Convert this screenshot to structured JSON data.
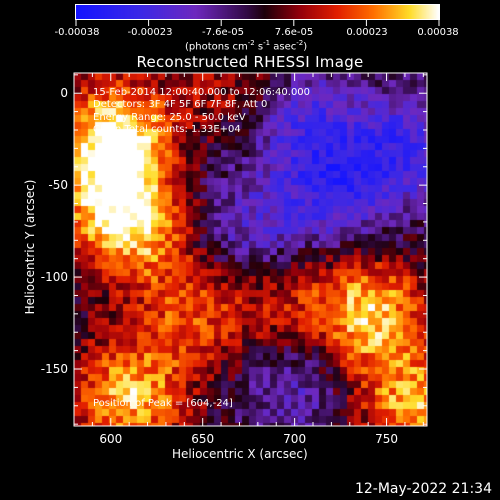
{
  "chart_data": {
    "type": "heatmap",
    "title": "Reconstructed RHESSI Image",
    "xlabel": "Heliocentric X (arcsec)",
    "ylabel": "Heliocentric Y (arcsec)",
    "xlim": [
      580,
      772
    ],
    "ylim": [
      -181,
      11
    ],
    "x_ticks": [
      600,
      650,
      700,
      750
    ],
    "y_ticks": [
      0,
      -50,
      -100,
      -150
    ],
    "colorbar": {
      "range": [
        -0.00038,
        0.00038
      ],
      "tick_labels": [
        "-0.00038",
        "-0.00023",
        "-7.6e-05",
        "7.6e-05",
        "0.00023",
        "0.00038"
      ],
      "units_text": "(photons cm",
      "units_exp1": "-2",
      "units_mid": " s",
      "units_exp2": "-1",
      "units_mid2": " asec",
      "units_exp3": "-2",
      "units_end": ")"
    },
    "annotations": {
      "time_range": "15-Feb-2014 12:00:40.000 to 12:06:40.000",
      "detectors": "Detectors: 3F 4F 5F 6F 7F 8F, Att 0",
      "energy_range": "Energy Range: 25.0 - 50.0 keV",
      "clean_counts": "Clean    Total counts: 1.33E+04",
      "peak_position": "Position of Peak = [604,-24]"
    },
    "intensity_regions": [
      {
        "x": 604,
        "y": -24,
        "value": 0.00038
      },
      {
        "x": 600,
        "y": -60,
        "value": 0.00025
      },
      {
        "x": 620,
        "y": -75,
        "value": 0.0002
      },
      {
        "x": 610,
        "y": -165,
        "value": 0.0003
      },
      {
        "x": 645,
        "y": -120,
        "value": 0.00018
      },
      {
        "x": 740,
        "y": -120,
        "value": 0.00033
      },
      {
        "x": 765,
        "y": -170,
        "value": 0.00028
      },
      {
        "x": 690,
        "y": -110,
        "value": 0.00015
      },
      {
        "x": 665,
        "y": 5,
        "value": 0.00012
      },
      {
        "x": 720,
        "y": -55,
        "value": -0.00022
      },
      {
        "x": 705,
        "y": -15,
        "value": -0.0002
      },
      {
        "x": 675,
        "y": -80,
        "value": -0.00018
      },
      {
        "x": 760,
        "y": -30,
        "value": -0.00024
      },
      {
        "x": 700,
        "y": -160,
        "value": -0.00015
      },
      {
        "x": 640,
        "y": -40,
        "value": -5e-05
      }
    ]
  },
  "footer": {
    "date": "12-May-2022 21:34"
  }
}
